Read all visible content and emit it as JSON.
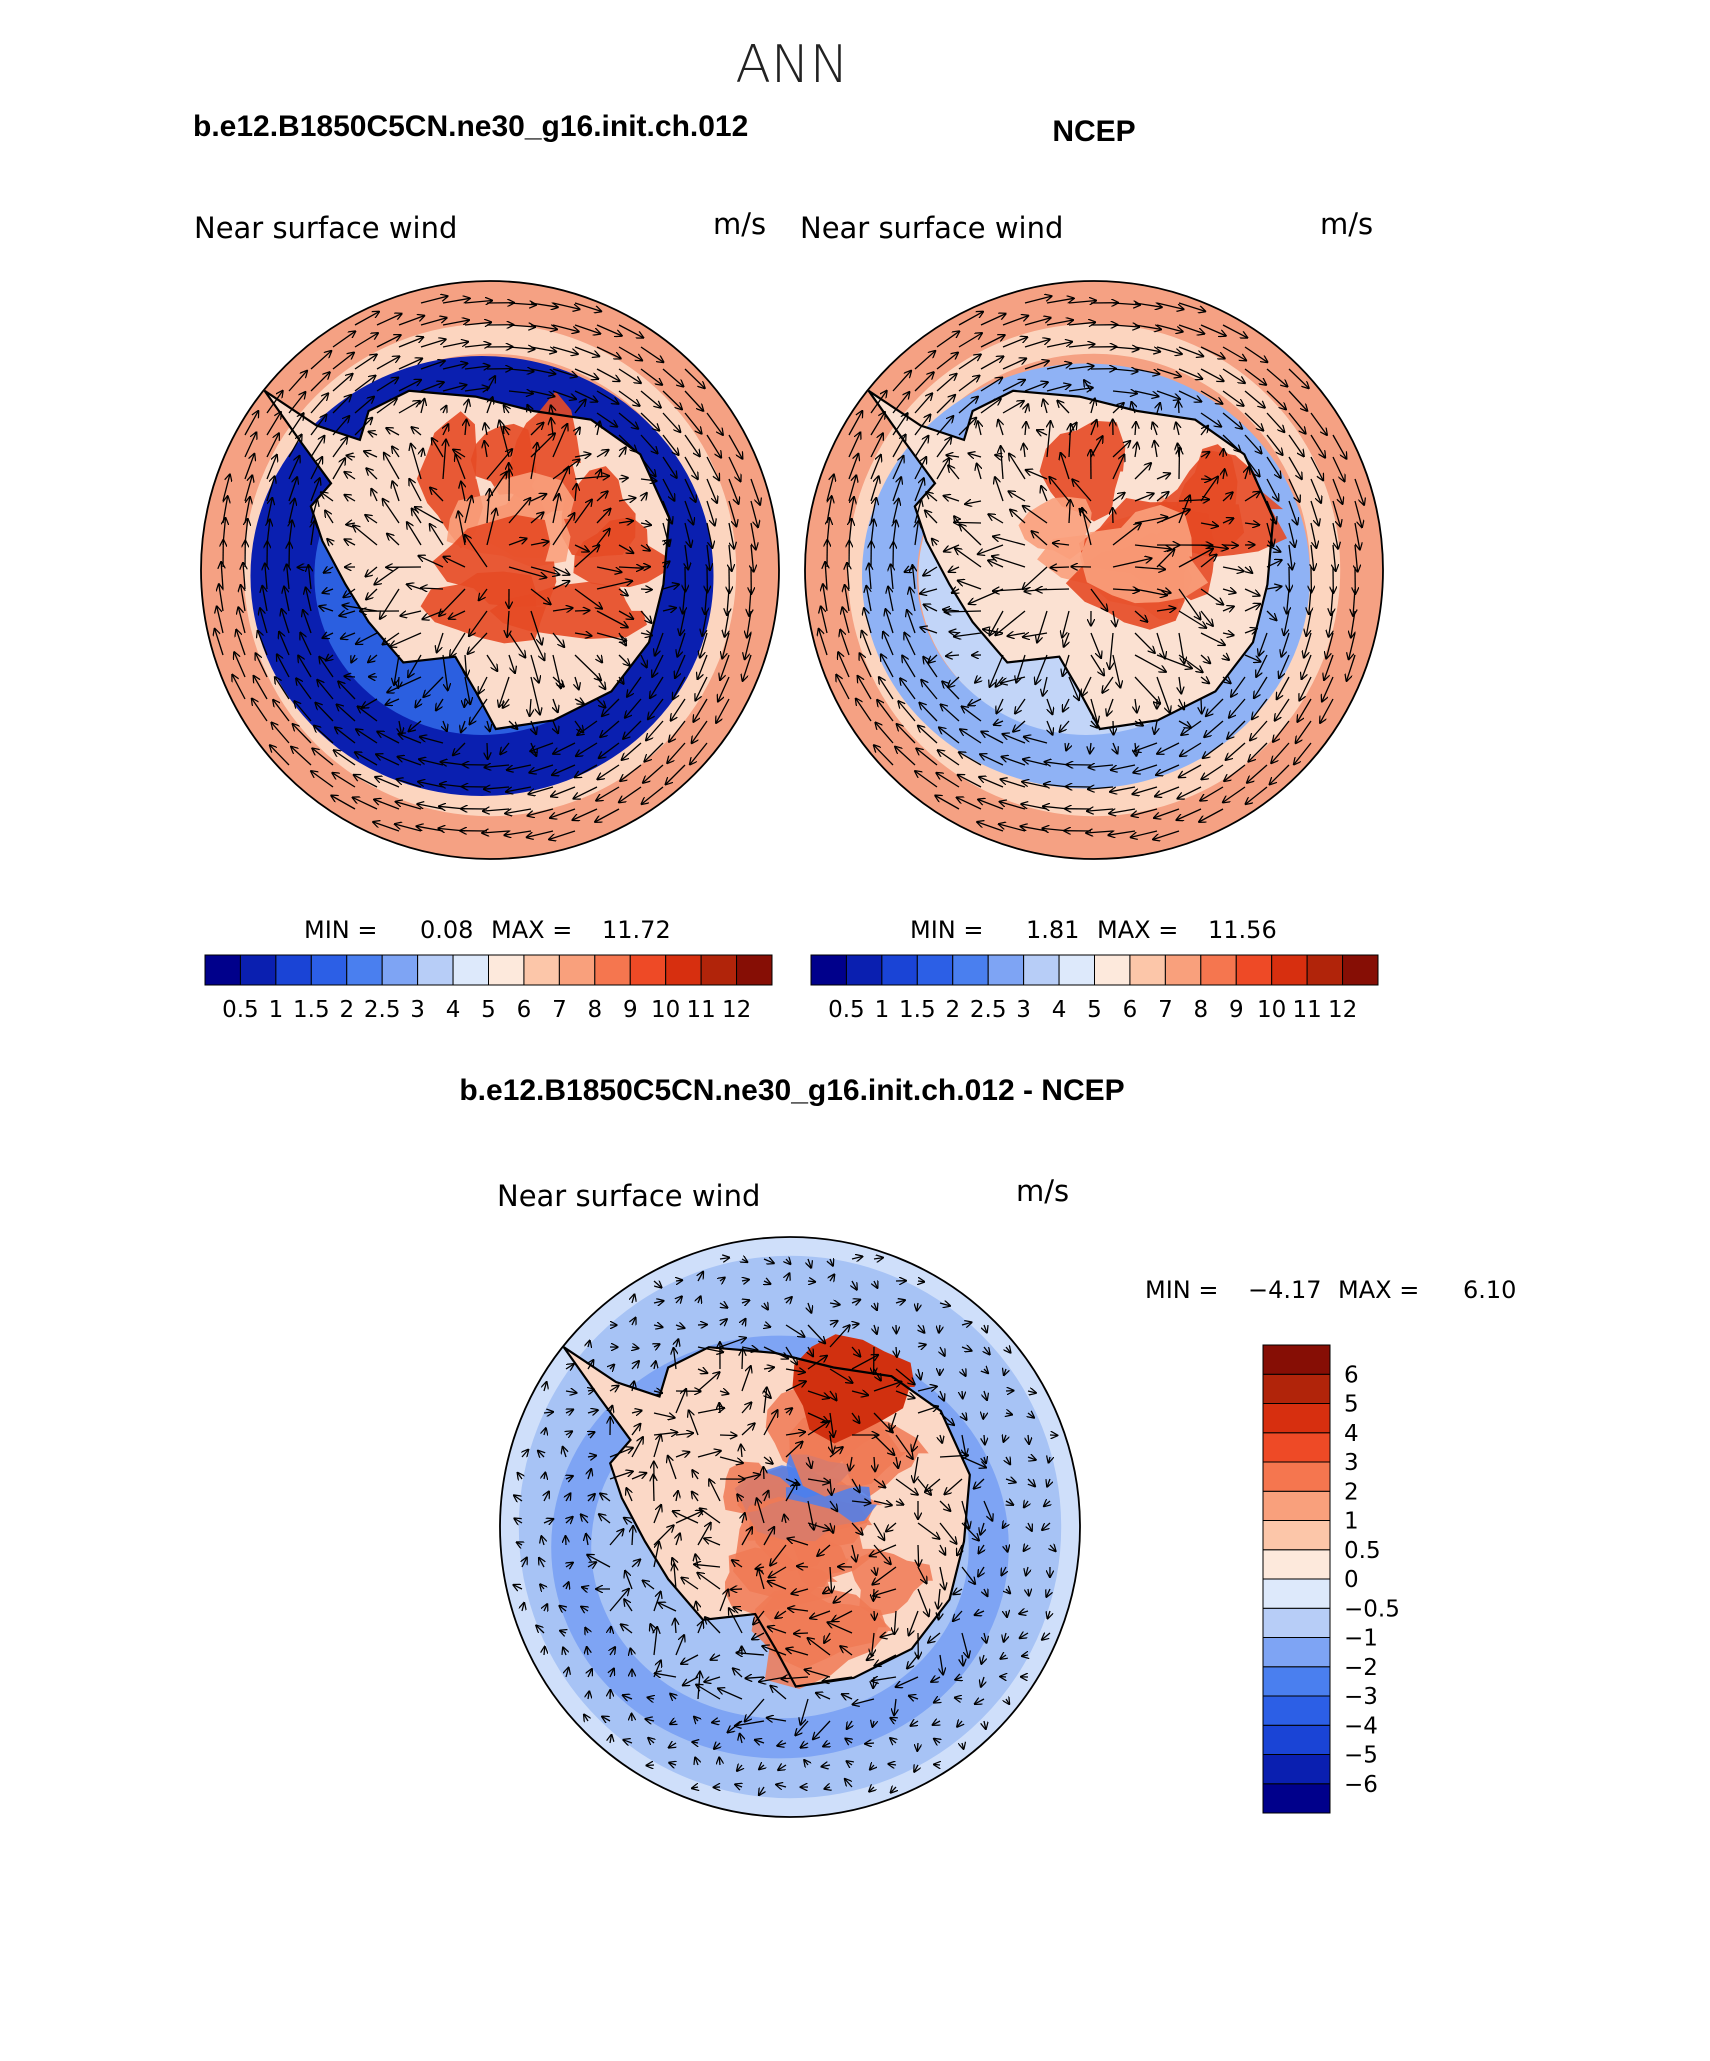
{
  "figure": {
    "title": "ANN"
  },
  "panels": [
    {
      "id": "model",
      "case_title": "b.e12.B1850C5CN.ne30_g16.init.ch.012",
      "variable": "Near surface wind",
      "units": "m/s",
      "stats": {
        "min_label": "MIN =",
        "min": "0.08",
        "max_label": "MAX =",
        "max": "11.72"
      }
    },
    {
      "id": "obs",
      "case_title": "NCEP",
      "variable": "Near surface wind",
      "units": "m/s",
      "stats": {
        "min_label": "MIN =",
        "min": "1.81",
        "max_label": "MAX =",
        "max": "11.56"
      }
    },
    {
      "id": "diff",
      "case_title": "b.e12.B1850C5CN.ne30_g16.init.ch.012 - NCEP",
      "variable": "Near surface wind",
      "units": "m/s",
      "stats": {
        "min_label": "MIN =",
        "min": "−4.17",
        "max_label": "MAX =",
        "max": "6.10"
      }
    }
  ],
  "colorbars": {
    "abs": {
      "colors": [
        "#00008b",
        "#0a1fb0",
        "#1a44d6",
        "#2c5fe6",
        "#4a7fef",
        "#7ea4f4",
        "#b7cdf7",
        "#dde9fb",
        "#fde9dc",
        "#fcc6a9",
        "#f9a07c",
        "#f5764f",
        "#ee4a26",
        "#d72f0f",
        "#b1240a",
        "#860e05"
      ],
      "tick_labels": [
        "0.5",
        "1",
        "1.5",
        "2",
        "2.5",
        "3",
        "4",
        "5",
        "6",
        "7",
        "8",
        "9",
        "10",
        "11",
        "12"
      ]
    },
    "diff": {
      "colors": [
        "#00008b",
        "#0a1fb0",
        "#1a44d6",
        "#2c5fe6",
        "#4a7fef",
        "#7ea4f4",
        "#b7cdf7",
        "#dde9fb",
        "#fde9dc",
        "#fcc6a9",
        "#f9a07c",
        "#f5764f",
        "#ee4a26",
        "#d72f0f",
        "#b1240a",
        "#860e05"
      ],
      "tick_labels": [
        "−6",
        "−5",
        "−4",
        "−3",
        "−2",
        "−1",
        "−0.5",
        "0",
        "0.5",
        "1",
        "2",
        "3",
        "4",
        "5",
        "6"
      ]
    }
  },
  "field_colors": {
    "ocean_high": "#f5a183",
    "ocean_mid": "#fcd5bf",
    "ring_low": "#2b5fe0",
    "ring_deep": "#0a1fb0",
    "ice_high": "#e64a25",
    "ice_mid": "#f9a07c",
    "coast": "#000000",
    "diff_bg": "#a7c3f5",
    "diff_ring": "#7ea4f4",
    "diff_pos": "#f07a55",
    "diff_neg": "#4a7fef"
  },
  "map_rendering": "polar stereographic contour map of Antarctica with wind vectors"
}
